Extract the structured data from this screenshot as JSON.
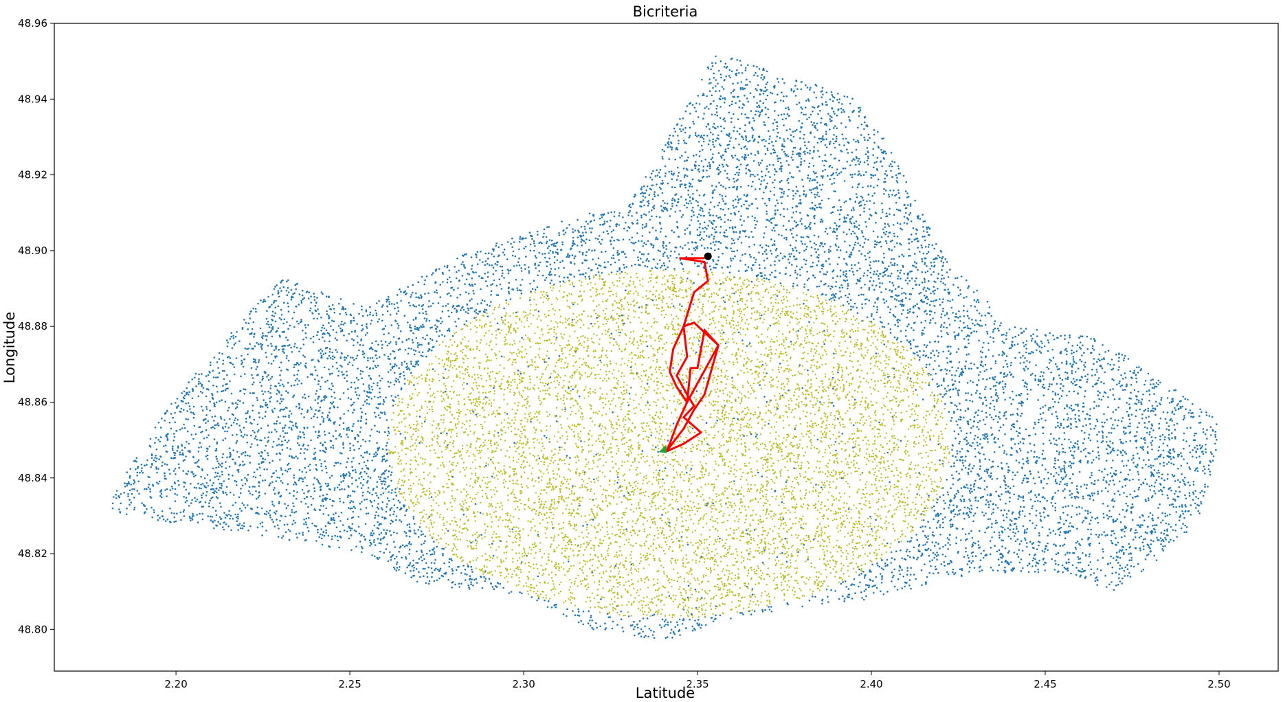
{
  "chart_data": {
    "type": "scatter",
    "title": "Bicriteria",
    "xlabel": "Latitude",
    "ylabel": "Longitude",
    "xlim": [
      2.165,
      2.517
    ],
    "ylim": [
      48.789,
      48.96
    ],
    "x_ticks": [
      "2.20",
      "2.25",
      "2.30",
      "2.35",
      "2.40",
      "2.45",
      "2.50"
    ],
    "y_ticks": [
      "48.80",
      "48.82",
      "48.84",
      "48.86",
      "48.88",
      "48.90",
      "48.92",
      "48.94",
      "48.96"
    ],
    "x_tick_values": [
      2.2,
      2.25,
      2.3,
      2.35,
      2.4,
      2.45,
      2.5
    ],
    "y_tick_values": [
      48.8,
      48.82,
      48.84,
      48.86,
      48.88,
      48.9,
      48.92,
      48.94,
      48.96
    ],
    "grid": false,
    "series": [
      {
        "color": "#1f77b4",
        "kind": "scatter",
        "description_extent": {
          "x": [
            2.18,
            2.5
          ],
          "y": [
            48.796,
            48.952
          ]
        }
      },
      {
        "color": "#bcbd22",
        "kind": "scatter",
        "center": {
          "x": 2.342,
          "y": 48.849
        },
        "radius": {
          "x": 0.081,
          "y": 0.046
        }
      },
      {
        "color": "#ff0000",
        "kind": "path",
        "points": [
          [
            2.352,
            48.898
          ],
          [
            2.345,
            48.898
          ],
          [
            2.352,
            48.897
          ],
          [
            2.353,
            48.892
          ],
          [
            2.349,
            48.889
          ],
          [
            2.346,
            48.88
          ],
          [
            2.347,
            48.872
          ],
          [
            2.344,
            48.867
          ],
          [
            2.347,
            48.862
          ],
          [
            2.349,
            48.859
          ],
          [
            2.346,
            48.856
          ],
          [
            2.351,
            48.852
          ],
          [
            2.346,
            48.849
          ],
          [
            2.341,
            48.847
          ],
          [
            2.346,
            48.853
          ],
          [
            2.349,
            48.858
          ],
          [
            2.352,
            48.862
          ],
          [
            2.356,
            48.875
          ],
          [
            2.352,
            48.879
          ],
          [
            2.35,
            48.869
          ],
          [
            2.348,
            48.869
          ],
          [
            2.347,
            48.86
          ],
          [
            2.356,
            48.875
          ],
          [
            2.349,
            48.881
          ],
          [
            2.346,
            48.88
          ],
          [
            2.343,
            48.874
          ],
          [
            2.342,
            48.868
          ],
          [
            2.344,
            48.864
          ],
          [
            2.347,
            48.86
          ],
          [
            2.344,
            48.854
          ],
          [
            2.342,
            48.849
          ],
          [
            2.341,
            48.847
          ]
        ]
      },
      {
        "color": "#000000",
        "kind": "marker",
        "points": [
          [
            2.353,
            48.8985
          ]
        ]
      },
      {
        "color": "#2ca02c",
        "kind": "marker",
        "points": [
          [
            2.34,
            48.8475
          ]
        ]
      }
    ]
  }
}
